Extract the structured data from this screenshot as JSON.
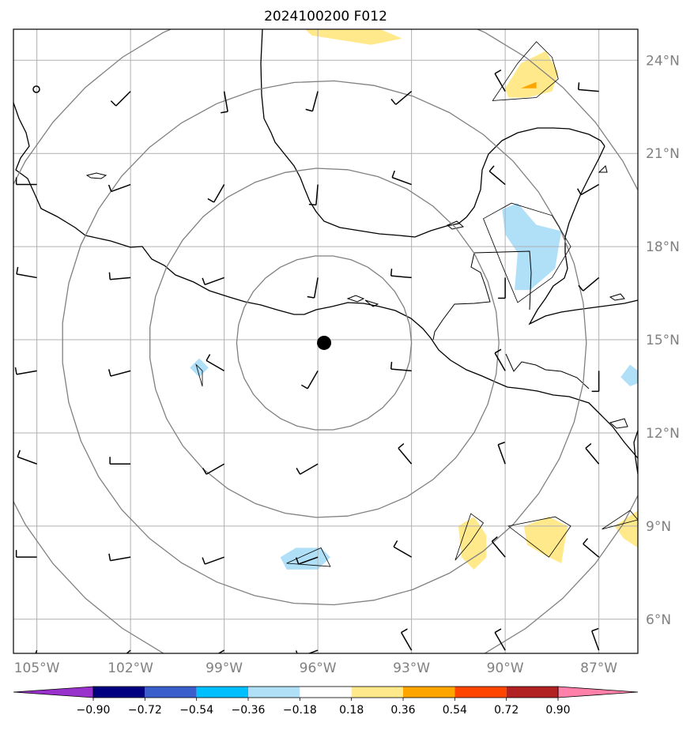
{
  "title": "2024100200 F012",
  "map": {
    "projection": "PlateCarree",
    "lon_range": [
      -105.75,
      -85.75
    ],
    "lat_range": [
      4.9,
      25.0
    ],
    "grid": true,
    "lat_ticks": [
      {
        "value": 6,
        "label": "6°N"
      },
      {
        "value": 9,
        "label": "9°N"
      },
      {
        "value": 12,
        "label": "12°N"
      },
      {
        "value": 15,
        "label": "15°N"
      },
      {
        "value": 18,
        "label": "18°N"
      },
      {
        "value": 21,
        "label": "21°N"
      },
      {
        "value": 24,
        "label": "24°N"
      }
    ],
    "lon_ticks": [
      {
        "value": -105,
        "label": "105°W"
      },
      {
        "value": -102,
        "label": "102°W"
      },
      {
        "value": -99,
        "label": "99°W"
      },
      {
        "value": -96,
        "label": "96°W"
      },
      {
        "value": -93,
        "label": "93°W"
      },
      {
        "value": -90,
        "label": "90°W"
      },
      {
        "value": -87,
        "label": "87°W"
      }
    ],
    "center": {
      "lon": -95.8,
      "lat": 14.9,
      "marker": "black-dot"
    },
    "range_rings_deg": [
      2.8,
      5.6,
      8.4,
      11.2
    ],
    "colors": {
      "grid": "#b0b0b0",
      "rings": "#808080",
      "coast": "#000000",
      "labels": "#808080"
    }
  },
  "contour_fills": [
    {
      "level": "0.18 to 0.36",
      "color": "#ffe98a",
      "region": "top-center",
      "points": [
        [
          -96.4,
          25.0
        ],
        [
          -94.0,
          25.0
        ],
        [
          -93.3,
          24.7
        ],
        [
          -94.3,
          24.5
        ],
        [
          -96.2,
          24.8
        ]
      ]
    },
    {
      "level": "0.18 to 0.36",
      "color": "#ffe98a",
      "region": "Yucatan-north",
      "points": [
        [
          -90.0,
          23.1
        ],
        [
          -89.5,
          23.9
        ],
        [
          -88.7,
          24.3
        ],
        [
          -88.3,
          23.6
        ],
        [
          -88.5,
          23.0
        ],
        [
          -89.3,
          22.8
        ],
        [
          -89.9,
          22.8
        ]
      ]
    },
    {
      "level": "0.36 to 0.54",
      "color": "#ffa500",
      "region": "Yucatan-north-core",
      "points": [
        [
          -89.5,
          23.1
        ],
        [
          -89.0,
          23.3
        ],
        [
          -89.0,
          23.1
        ]
      ]
    },
    {
      "level": "-0.36 to -0.18",
      "color": "#b0dff8",
      "region": "Belize-Guatemala",
      "points": [
        [
          -90.1,
          19.2
        ],
        [
          -89.6,
          19.4
        ],
        [
          -89.0,
          18.7
        ],
        [
          -88.2,
          18.5
        ],
        [
          -88.4,
          17.3
        ],
        [
          -89.2,
          16.6
        ],
        [
          -89.7,
          16.6
        ],
        [
          -89.6,
          17.8
        ],
        [
          -90.0,
          18.4
        ]
      ]
    },
    {
      "level": "-0.36 to -0.18",
      "color": "#b0dff8",
      "region": "west-spot",
      "points": [
        [
          -100.1,
          14.1
        ],
        [
          -99.8,
          14.4
        ],
        [
          -99.5,
          14.1
        ],
        [
          -99.8,
          13.8
        ]
      ]
    },
    {
      "level": "-0.36 to -0.18",
      "color": "#b0dff8",
      "region": "south-spot",
      "points": [
        [
          -97.2,
          8.0
        ],
        [
          -96.7,
          8.3
        ],
        [
          -95.9,
          8.3
        ],
        [
          -95.6,
          8.0
        ],
        [
          -96.0,
          7.6
        ],
        [
          -97.0,
          7.6
        ]
      ]
    },
    {
      "level": "-0.36 to -0.18",
      "color": "#b0dff8",
      "region": "east-edge",
      "points": [
        [
          -86.3,
          13.8
        ],
        [
          -86.0,
          14.2
        ],
        [
          -85.75,
          14.0
        ],
        [
          -85.75,
          13.6
        ],
        [
          -86.0,
          13.5
        ]
      ]
    },
    {
      "level": "0.18 to 0.36",
      "color": "#ffe98a",
      "region": "southeast-1",
      "points": [
        [
          -91.5,
          9.0
        ],
        [
          -91.0,
          9.3
        ],
        [
          -90.6,
          8.7
        ],
        [
          -90.6,
          8.0
        ],
        [
          -91.0,
          7.6
        ],
        [
          -91.4,
          8.0
        ]
      ]
    },
    {
      "level": "0.18 to 0.36",
      "color": "#ffe98a",
      "region": "southeast-2",
      "points": [
        [
          -89.4,
          9.0
        ],
        [
          -88.6,
          9.3
        ],
        [
          -88.0,
          9.0
        ],
        [
          -88.2,
          7.8
        ],
        [
          -88.8,
          8.1
        ],
        [
          -89.3,
          8.4
        ]
      ]
    },
    {
      "level": "0.18 to 0.36",
      "color": "#ffe98a",
      "region": "east-edge-yellow",
      "points": [
        [
          -85.75,
          9.5
        ],
        [
          -86.5,
          9.0
        ],
        [
          -86.2,
          8.6
        ],
        [
          -85.75,
          8.3
        ]
      ]
    }
  ],
  "contour_lines": [
    {
      "level": "0.18",
      "points": [
        [
          -90.4,
          22.7
        ],
        [
          -89.6,
          23.9
        ],
        [
          -89.0,
          24.6
        ],
        [
          -88.5,
          24.1
        ],
        [
          -88.3,
          23.4
        ],
        [
          -89.0,
          22.8
        ]
      ]
    },
    {
      "level": "-0.18",
      "points": [
        [
          -90.7,
          18.9
        ],
        [
          -89.8,
          19.4
        ],
        [
          -88.5,
          19.0
        ],
        [
          -87.9,
          18.0
        ],
        [
          -88.5,
          17.0
        ],
        [
          -89.6,
          16.2
        ],
        [
          -90.1,
          17.4
        ]
      ]
    },
    {
      "level": "0.18",
      "points": [
        [
          -91.6,
          7.9
        ],
        [
          -91.1,
          9.4
        ],
        [
          -90.7,
          9.1
        ],
        [
          -91.1,
          8.5
        ]
      ]
    },
    {
      "level": "0.18",
      "points": [
        [
          -89.9,
          9.0
        ],
        [
          -88.4,
          9.3
        ],
        [
          -87.9,
          9.0
        ],
        [
          -88.6,
          8.0
        ]
      ]
    },
    {
      "level": "0.18",
      "points": [
        [
          -86.9,
          8.9
        ],
        [
          -86.0,
          9.5
        ],
        [
          -85.75,
          9.2
        ]
      ]
    },
    {
      "level": "-0.18",
      "points": [
        [
          -97.0,
          7.8
        ],
        [
          -95.9,
          8.3
        ],
        [
          -95.6,
          7.7
        ]
      ]
    },
    {
      "level": "-0.18",
      "points": [
        [
          -99.9,
          14.2
        ],
        [
          -99.7,
          14.0
        ],
        [
          -99.7,
          13.5
        ]
      ]
    }
  ],
  "wind_barbs": [
    {
      "lon": -105,
      "lat": 20,
      "dir": 270,
      "speed": 10
    },
    {
      "lon": -102,
      "lat": 20,
      "dir": 250,
      "speed": 10
    },
    {
      "lon": -99,
      "lat": 20,
      "dir": 210,
      "speed": 10
    },
    {
      "lon": -96,
      "lat": 20,
      "dir": 185,
      "speed": 10
    },
    {
      "lon": -93,
      "lat": 20,
      "dir": 290,
      "speed": 10
    },
    {
      "lon": -90,
      "lat": 20,
      "dir": 310,
      "speed": 10
    },
    {
      "lon": -87,
      "lat": 20,
      "dir": 240,
      "speed": 10
    },
    {
      "lon": -102,
      "lat": 23,
      "dir": 225,
      "speed": 10
    },
    {
      "lon": -99,
      "lat": 23,
      "dir": 170,
      "speed": 10
    },
    {
      "lon": -96,
      "lat": 23,
      "dir": 195,
      "speed": 10
    },
    {
      "lon": -93,
      "lat": 23,
      "dir": 230,
      "speed": 10
    },
    {
      "lon": -90,
      "lat": 23,
      "dir": 330,
      "speed": 10
    },
    {
      "lon": -87,
      "lat": 23,
      "dir": 275,
      "speed": 10
    },
    {
      "lon": -105,
      "lat": 17,
      "dir": 280,
      "speed": 10
    },
    {
      "lon": -102,
      "lat": 17,
      "dir": 265,
      "speed": 10
    },
    {
      "lon": -99,
      "lat": 17,
      "dir": 250,
      "speed": 10
    },
    {
      "lon": -96,
      "lat": 17,
      "dir": 190,
      "speed": 10
    },
    {
      "lon": -93,
      "lat": 17,
      "dir": 275,
      "speed": 10
    },
    {
      "lon": -90,
      "lat": 17,
      "dir": 180,
      "speed": 10
    },
    {
      "lon": -87,
      "lat": 17,
      "dir": 230,
      "speed": 10
    },
    {
      "lon": -105,
      "lat": 14,
      "dir": 260,
      "speed": 10
    },
    {
      "lon": -102,
      "lat": 14,
      "dir": 255,
      "speed": 10
    },
    {
      "lon": -99,
      "lat": 14,
      "dir": 300,
      "speed": 10
    },
    {
      "lon": -96,
      "lat": 14,
      "dir": 210,
      "speed": 10
    },
    {
      "lon": -93,
      "lat": 14,
      "dir": 275,
      "speed": 10
    },
    {
      "lon": -90,
      "lat": 14,
      "dir": 330,
      "speed": 10
    },
    {
      "lon": -87,
      "lat": 14,
      "dir": 180,
      "speed": 10
    },
    {
      "lon": -105,
      "lat": 11,
      "dir": 290,
      "speed": 10
    },
    {
      "lon": -102,
      "lat": 11,
      "dir": 270,
      "speed": 10
    },
    {
      "lon": -99,
      "lat": 11,
      "dir": 240,
      "speed": 10
    },
    {
      "lon": -96,
      "lat": 11,
      "dir": 240,
      "speed": 10
    },
    {
      "lon": -93,
      "lat": 11,
      "dir": 320,
      "speed": 10
    },
    {
      "lon": -90,
      "lat": 11,
      "dir": 340,
      "speed": 10
    },
    {
      "lon": -87,
      "lat": 11,
      "dir": 320,
      "speed": 10
    },
    {
      "lon": -105,
      "lat": 8,
      "dir": 270,
      "speed": 10
    },
    {
      "lon": -102,
      "lat": 8,
      "dir": 260,
      "speed": 10
    },
    {
      "lon": -99,
      "lat": 8,
      "dir": 250,
      "speed": 10
    },
    {
      "lon": -96,
      "lat": 8,
      "dir": 250,
      "speed": 10
    },
    {
      "lon": -93,
      "lat": 8,
      "dir": 300,
      "speed": 10
    },
    {
      "lon": -90,
      "lat": 8,
      "dir": 320,
      "speed": 10
    },
    {
      "lon": -87,
      "lat": 8,
      "dir": 310,
      "speed": 10
    },
    {
      "lon": -105,
      "lat": 5,
      "dir": 200,
      "speed": 10
    },
    {
      "lon": -102,
      "lat": 5,
      "dir": 230,
      "speed": 10
    },
    {
      "lon": -99,
      "lat": 5,
      "dir": 240,
      "speed": 10
    },
    {
      "lon": -96,
      "lat": 5,
      "dir": 250,
      "speed": 10
    },
    {
      "lon": -93,
      "lat": 5,
      "dir": 330,
      "speed": 10
    },
    {
      "lon": -90,
      "lat": 5,
      "dir": 330,
      "speed": 10
    },
    {
      "lon": -87,
      "lat": 5,
      "dir": 340,
      "speed": 10
    }
  ],
  "colorbar": {
    "bounds": [
      -1.08,
      -0.9,
      -0.72,
      -0.54,
      -0.36,
      -0.18,
      0.18,
      0.36,
      0.54,
      0.72,
      0.9,
      1.08
    ],
    "colors": [
      "#9932cc",
      "#000080",
      "#3a5fcd",
      "#00bfff",
      "#b0dff8",
      "#ffffff",
      "#ffe98a",
      "#ffa500",
      "#ff4500",
      "#b22222",
      "#ff80a8"
    ],
    "extend_colors": {
      "min": "#9932cc",
      "max": "#ff80a8"
    },
    "tick_labels": [
      "−0.90",
      "−0.72",
      "−0.54",
      "−0.36",
      "−0.18",
      "0.18",
      "0.36",
      "0.54",
      "0.72",
      "0.90"
    ]
  }
}
